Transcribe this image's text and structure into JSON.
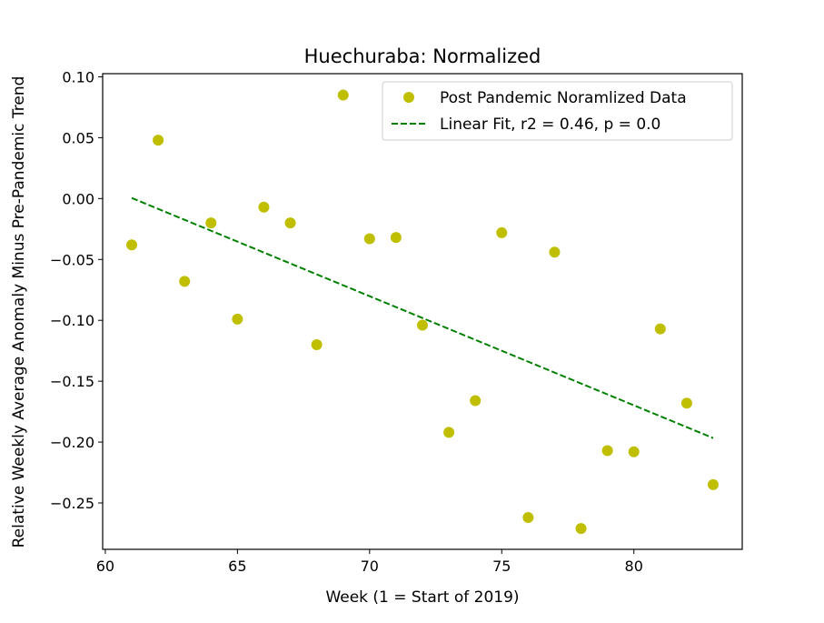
{
  "chart_data": {
    "type": "scatter",
    "title": "Huechuraba: Normalized",
    "xlabel": "Week (1 = Start of 2019)",
    "ylabel": "Relative Weekly Average Anomaly Minus Pre-Pandemic Trend",
    "xlim": [
      59.9,
      84.1
    ],
    "ylim": [
      -0.2881,
      0.1026
    ],
    "x_ticks": [
      60,
      65,
      70,
      75,
      80
    ],
    "y_ticks": [
      0.1,
      0.05,
      0.0,
      -0.05,
      -0.1,
      -0.15,
      -0.2,
      -0.25
    ],
    "x_tick_labels": [
      "60",
      "65",
      "70",
      "75",
      "80"
    ],
    "y_tick_labels": [
      "0.10",
      "0.05",
      "0.00",
      "−0.05",
      "−0.10",
      "−0.15",
      "−0.20",
      "−0.25"
    ],
    "grid": false,
    "legend_position": "upper right",
    "series": [
      {
        "name": "Post Pandemic Noramlized Data",
        "kind": "scatter",
        "color": "#bfbf00",
        "marker": "circle",
        "x": [
          61,
          62,
          63,
          64,
          65,
          66,
          67,
          68,
          69,
          70,
          71,
          72,
          73,
          74,
          75,
          76,
          77,
          78,
          79,
          80,
          81,
          82,
          83
        ],
        "y": [
          -0.038,
          0.048,
          -0.068,
          -0.02,
          -0.099,
          -0.007,
          -0.02,
          -0.12,
          0.085,
          -0.033,
          -0.032,
          -0.104,
          -0.192,
          -0.166,
          -0.028,
          -0.262,
          -0.044,
          -0.271,
          -0.207,
          -0.208,
          -0.107,
          -0.168,
          -0.235
        ]
      },
      {
        "name": "Linear Fit, r2 = 0.46, p = 0.0",
        "kind": "line",
        "color": "#008000",
        "dash": "dashed",
        "x": [
          61,
          83
        ],
        "y": [
          0.0005,
          -0.1967
        ]
      }
    ]
  }
}
